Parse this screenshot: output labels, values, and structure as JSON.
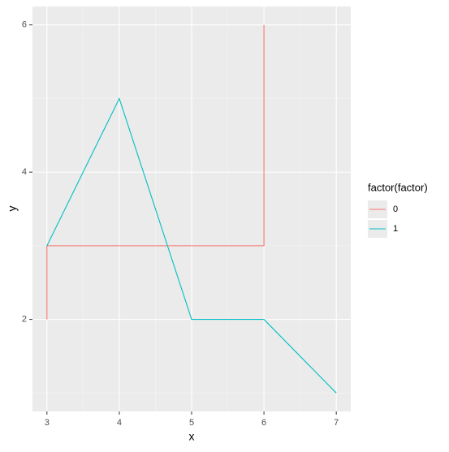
{
  "chart_data": {
    "type": "line",
    "xlabel": "x",
    "ylabel": "y",
    "legend_title": "factor(factor)",
    "legend_position": "right",
    "series": [
      {
        "name": "0",
        "color": "#f8766d",
        "x": [
          3,
          3,
          6,
          6
        ],
        "values": [
          2,
          3,
          3,
          6
        ]
      },
      {
        "name": "1",
        "color": "#00bfc4",
        "x": [
          3,
          4,
          5,
          6,
          7
        ],
        "values": [
          3,
          5,
          2,
          2,
          1
        ]
      }
    ],
    "xlim": [
      2.8,
      7.2
    ],
    "xticks": [
      3,
      4,
      5,
      6,
      7
    ],
    "ylim": [
      0.75,
      6.25
    ],
    "yticks": [
      2,
      4,
      6
    ],
    "grid": true
  }
}
